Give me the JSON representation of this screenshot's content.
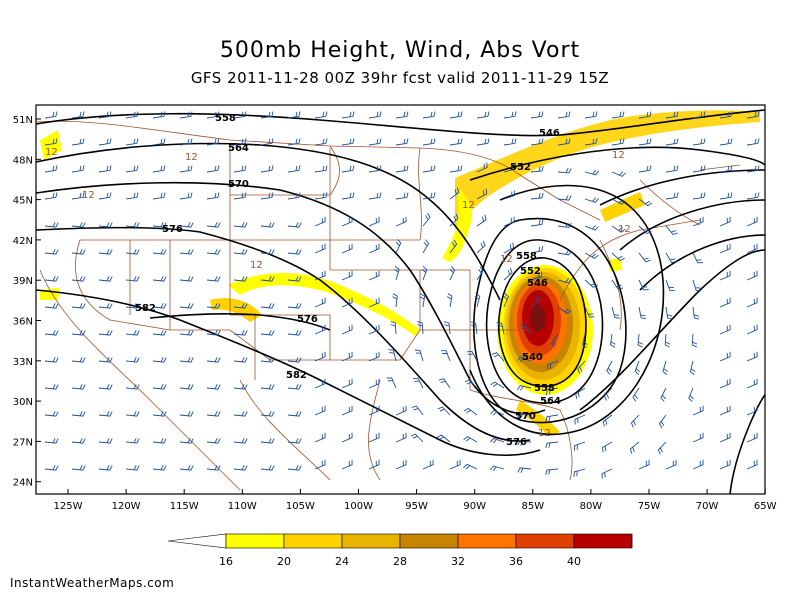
{
  "title": "500mb Height, Wind, Abs Vort",
  "subtitle": "GFS 2011-11-28 00Z 39hr fcst valid 2011-11-29 15Z",
  "credit": "InstantWeatherMaps.com",
  "map": {
    "lat_labels": [
      "51N",
      "48N",
      "45N",
      "42N",
      "39N",
      "36N",
      "33N",
      "30N",
      "27N",
      "24N"
    ],
    "lon_labels": [
      "125W",
      "120W",
      "115W",
      "110W",
      "105W",
      "100W",
      "95W",
      "90W",
      "85W",
      "80W",
      "75W",
      "70W",
      "65W"
    ],
    "height_contour_labels": [
      "558",
      "564",
      "570",
      "576",
      "582",
      "576",
      "582",
      "546",
      "552",
      "558",
      "552",
      "546",
      "540",
      "558",
      "564",
      "570",
      "576"
    ],
    "vorticity_labels": [
      "12",
      "12",
      "12",
      "12",
      "12",
      "12",
      "12",
      "12",
      "12"
    ],
    "colors": {
      "height_contour": "#000000",
      "wind_barb": "#1c4f9c",
      "state_border": "#a0522d",
      "frame": "#000000"
    }
  },
  "colorbar": {
    "labels": [
      "16",
      "20",
      "24",
      "28",
      "32",
      "36",
      "40"
    ],
    "colors": [
      "#ffffff",
      "#ffff00",
      "#ffd200",
      "#e8b400",
      "#c68400",
      "#ff7300",
      "#e04000",
      "#b80000",
      "#7a1010"
    ]
  }
}
